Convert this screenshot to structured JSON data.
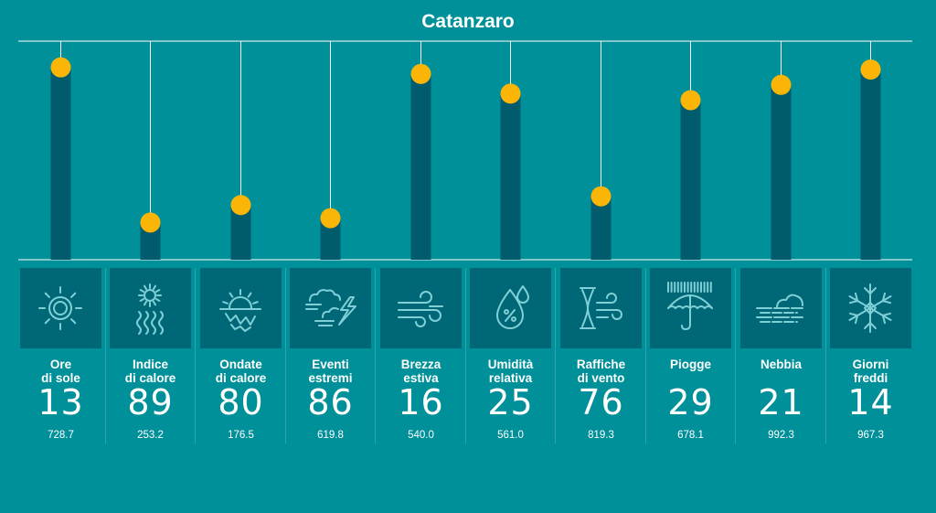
{
  "chart_data": {
    "type": "bar",
    "title": "Catanzaro",
    "categories": [
      "Ore\ndi sole",
      "Indice\ndi calore",
      "Ondate\ndi calore",
      "Eventi\nestremi",
      "Brezza\nestiva",
      "Umidità\nrelativa",
      "Raffiche\ndi vento",
      "Piogge",
      "Nebbia",
      "Giorni\nfreddi"
    ],
    "ranks": [
      "13",
      "89",
      "80",
      "86",
      "16",
      "25",
      "76",
      "29",
      "21",
      "14"
    ],
    "values": [
      "728.7",
      "253.2",
      "176.5",
      "619.8",
      "540.0",
      "561.0",
      "819.3",
      "678.1",
      "992.3",
      "967.3"
    ],
    "bar_levels": [
      0.88,
      0.17,
      0.25,
      0.19,
      0.85,
      0.76,
      0.29,
      0.73,
      0.8,
      0.87
    ],
    "icons": [
      "sun-icon",
      "heat-index-icon",
      "heatwave-icon",
      "storm-icon",
      "breeze-icon",
      "humidity-icon",
      "wind-gust-icon",
      "rain-icon",
      "fog-icon",
      "snowflake-icon"
    ],
    "colors": {
      "background": "#00909a",
      "bar": "#005c6d",
      "icon_box": "#006777",
      "marker": "#fbb507",
      "line": "#ffffff"
    }
  }
}
